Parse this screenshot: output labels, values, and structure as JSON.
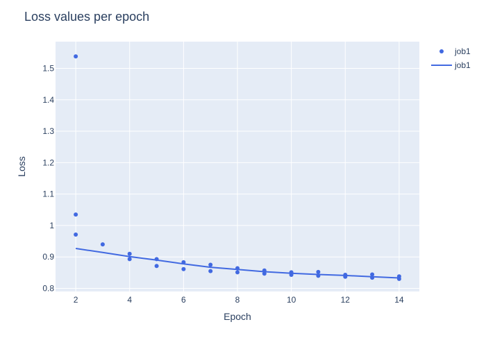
{
  "chart_data": {
    "type": "scatter",
    "title": "Loss values per epoch",
    "xlabel": "Epoch",
    "ylabel": "Loss",
    "xlim": [
      1.25,
      14.75
    ],
    "ylim": [
      0.79,
      1.585
    ],
    "x_ticks": [
      2,
      4,
      6,
      8,
      10,
      12,
      14
    ],
    "x_tick_labels": [
      "2",
      "4",
      "6",
      "8",
      "10",
      "12",
      "14"
    ],
    "y_ticks": [
      0.8,
      0.9,
      1.0,
      1.1,
      1.2,
      1.3,
      1.4,
      1.5
    ],
    "y_tick_labels": [
      "0.8",
      "0.9",
      "1",
      "1.1",
      "1.2",
      "1.3",
      "1.4",
      "1.5"
    ],
    "grid": true,
    "legend_position": "top-right",
    "colors": {
      "series": "#4169e1",
      "plot_bg": "#e5ecf6",
      "grid": "#ffffff",
      "text": "#2a3f5f"
    },
    "series": [
      {
        "name": "job1",
        "mode": "markers",
        "x": [
          2,
          2,
          2,
          3,
          4,
          4,
          5,
          5,
          6,
          6,
          7,
          7,
          8,
          8,
          9,
          9,
          10,
          10,
          11,
          11,
          12,
          12,
          13,
          13,
          14,
          14
        ],
        "y": [
          1.538,
          1.035,
          0.971,
          0.94,
          0.91,
          0.893,
          0.893,
          0.871,
          0.883,
          0.861,
          0.875,
          0.855,
          0.864,
          0.851,
          0.857,
          0.847,
          0.851,
          0.843,
          0.852,
          0.84,
          0.843,
          0.837,
          0.844,
          0.834,
          0.838,
          0.83
        ]
      },
      {
        "name": "job1",
        "mode": "lines",
        "x": [
          2,
          3,
          4,
          5,
          6,
          7,
          8,
          9,
          10,
          11,
          12,
          13,
          14
        ],
        "y": [
          0.927,
          0.914,
          0.901,
          0.89,
          0.878,
          0.867,
          0.86,
          0.853,
          0.848,
          0.844,
          0.841,
          0.837,
          0.833
        ]
      }
    ]
  }
}
